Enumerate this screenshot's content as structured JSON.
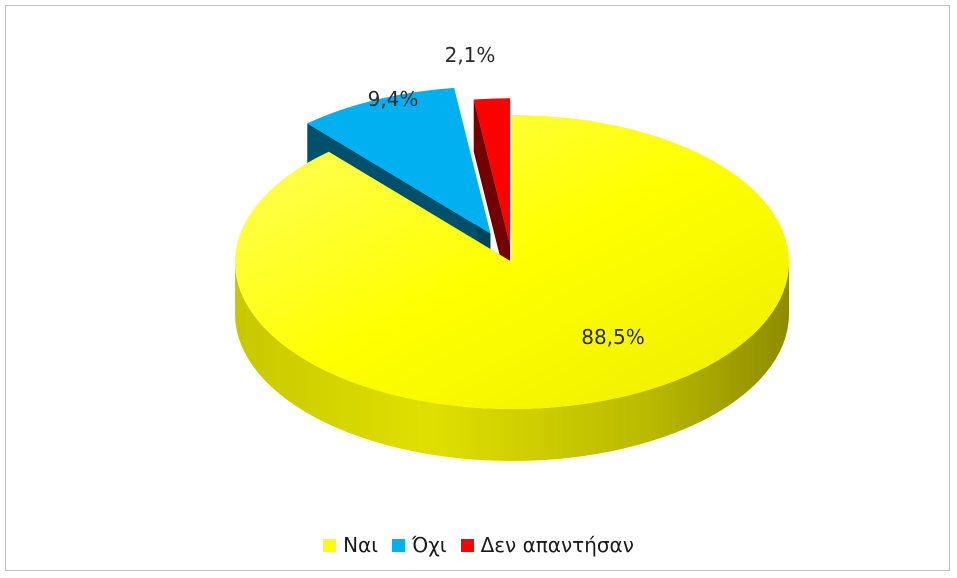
{
  "chart_data": {
    "type": "pie",
    "style": "3d-exploded",
    "categories": [
      "Ναι",
      "Όχι",
      "Δεν απαντήσαν"
    ],
    "values": [
      88.5,
      9.4,
      2.1
    ],
    "labels": [
      "88,5%",
      "9,4%",
      "2,1%"
    ],
    "colors": [
      "#ffff00",
      "#00b0f0",
      "#ff0000"
    ],
    "legend_position": "bottom"
  },
  "legend": {
    "items": [
      {
        "label": "Ναι",
        "color": "#ffff00"
      },
      {
        "label": "Όχι",
        "color": "#00b0f0"
      },
      {
        "label": "Δεν απαντήσαν",
        "color": "#ff0000"
      }
    ]
  }
}
